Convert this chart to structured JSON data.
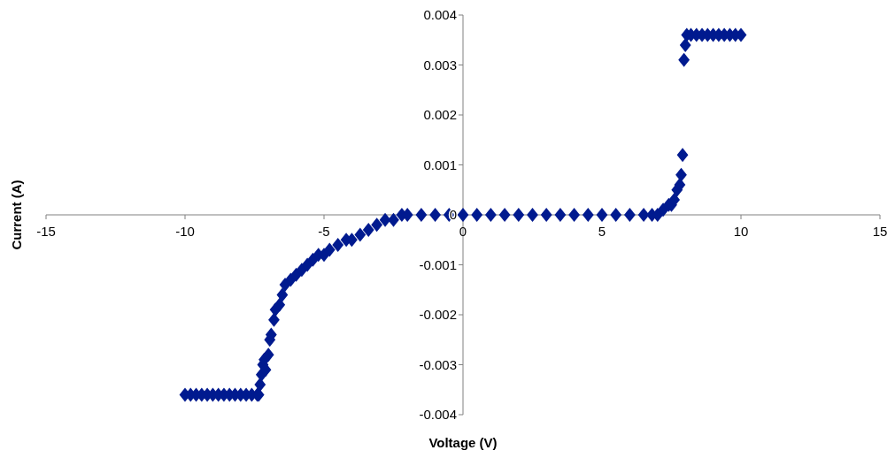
{
  "chart_data": {
    "type": "scatter",
    "xlabel": "Voltage (V)",
    "ylabel": "Current (A)",
    "xlim": [
      -15,
      15
    ],
    "ylim": [
      -0.004,
      0.004
    ],
    "xticks": [
      -15,
      -10,
      -5,
      0,
      5,
      10,
      15
    ],
    "yticks": [
      {
        "value": -0.004,
        "label": "-0.004"
      },
      {
        "value": -0.003,
        "label": "-0.003"
      },
      {
        "value": -0.002,
        "label": "-0.002"
      },
      {
        "value": -0.001,
        "label": "-0.001"
      },
      0,
      {
        "value": 0.001,
        "label": "0.001"
      },
      {
        "value": 0.002,
        "label": "0.002"
      },
      {
        "value": 0.003,
        "label": "0.003"
      },
      {
        "value": 0.004,
        "label": "0.004"
      }
    ],
    "marker": "diamond",
    "grid": false,
    "series": [
      {
        "color": "#001a8f",
        "x": [
          -10,
          -9.8,
          -9.6,
          -9.4,
          -9.2,
          -9,
          -8.8,
          -8.6,
          -8.4,
          -8.2,
          -8,
          -7.8,
          -7.6,
          -7.4,
          -7.35,
          -7.3,
          -7.25,
          -7.2,
          -7.15,
          -7.1,
          -7,
          -6.95,
          -6.9,
          -6.8,
          -6.75,
          -6.6,
          -6.5,
          -6.4,
          -6.2,
          -6,
          -5.8,
          -5.6,
          -5.4,
          -5.2,
          -5,
          -4.8,
          -4.5,
          -4.2,
          -4,
          -3.7,
          -3.4,
          -3.1,
          -2.8,
          -2.5,
          -2.2,
          -2,
          -1.5,
          -1,
          -0.5,
          0,
          0.5,
          1,
          1.5,
          2,
          2.5,
          3,
          3.5,
          4,
          4.5,
          5,
          5.5,
          6,
          6.5,
          6.8,
          7,
          7.2,
          7.4,
          7.5,
          7.6,
          7.7,
          7.8,
          7.85,
          7.9,
          7.95,
          8,
          8.05,
          8.2,
          8.4,
          8.6,
          8.8,
          9,
          9.2,
          9.4,
          9.6,
          9.8,
          10
        ],
        "values": [
          -0.0036,
          -0.0036,
          -0.0036,
          -0.0036,
          -0.0036,
          -0.0036,
          -0.0036,
          -0.0036,
          -0.0036,
          -0.0036,
          -0.0036,
          -0.0036,
          -0.0036,
          -0.0036,
          -0.0036,
          -0.0034,
          -0.0032,
          -0.003,
          -0.0029,
          -0.0031,
          -0.0028,
          -0.0025,
          -0.0024,
          -0.0021,
          -0.0019,
          -0.0018,
          -0.0016,
          -0.0014,
          -0.0013,
          -0.0012,
          -0.0011,
          -0.001,
          -0.0009,
          -0.0008,
          -0.0008,
          -0.0007,
          -0.0006,
          -0.0005,
          -0.0005,
          -0.0004,
          -0.0003,
          -0.0002,
          -0.0001,
          -0.0001,
          0,
          0,
          0,
          0,
          0,
          0,
          0,
          0,
          0,
          0,
          0,
          0,
          0,
          0,
          0,
          0,
          0,
          0,
          0,
          0,
          0,
          0.0001,
          0.0002,
          0.0002,
          0.0003,
          0.0005,
          0.0006,
          0.0008,
          0.0012,
          0.0031,
          0.0034,
          0.0036,
          0.0036,
          0.0036,
          0.0036,
          0.0036,
          0.0036,
          0.0036,
          0.0036,
          0.0036,
          0.0036,
          0.0036
        ]
      }
    ]
  }
}
